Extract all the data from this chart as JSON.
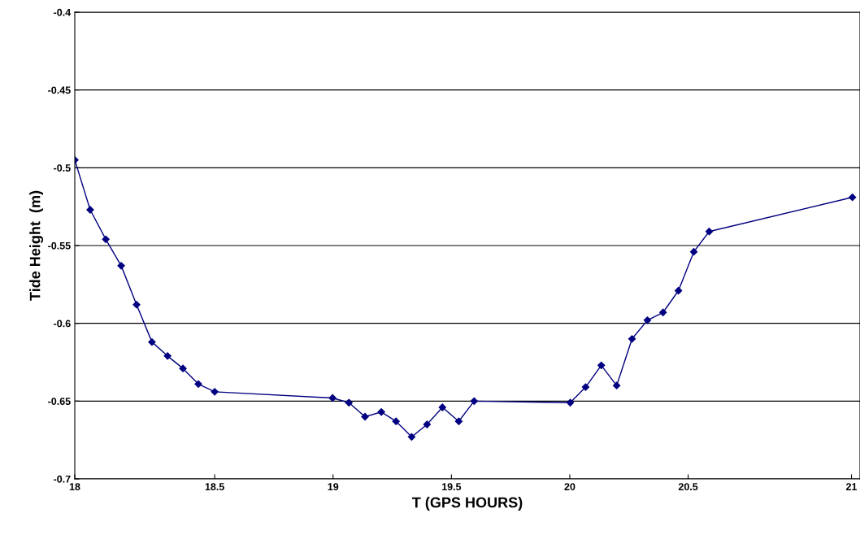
{
  "chart_data": {
    "type": "line",
    "xlabel": "T (GPS HOURS)",
    "ylabel": "Tide Height  (m)",
    "x": [
      17.909,
      17.974,
      18.04,
      18.105,
      18.17,
      18.235,
      18.301,
      18.366,
      18.431,
      18.5,
      18.998,
      19.067,
      19.135,
      19.204,
      19.266,
      19.332,
      19.397,
      19.462,
      19.531,
      19.596,
      20.002,
      20.067,
      20.133,
      20.198,
      20.263,
      20.328,
      20.394,
      20.459,
      20.524,
      20.589,
      21.194
    ],
    "series": [
      {
        "color": "#000080",
        "values": [
          -0.495,
          -0.527,
          -0.546,
          -0.563,
          -0.588,
          -0.612,
          -0.621,
          -0.629,
          -0.639,
          -0.644,
          -0.648,
          -0.651,
          -0.66,
          -0.657,
          -0.663,
          -0.673,
          -0.665,
          -0.654,
          -0.663,
          -0.65,
          -0.651,
          -0.641,
          -0.627,
          -0.64,
          -0.61,
          -0.598,
          -0.593,
          -0.579,
          -0.554,
          -0.541,
          -0.519
        ]
      }
    ],
    "xlim": [
      17.909,
      21.226
    ],
    "xticks": [
      {
        "value": 17.909,
        "label": "18"
      },
      18.5,
      19,
      19.5,
      20,
      20.5,
      {
        "value": 21.19,
        "label": "21"
      }
    ],
    "ylim": [
      -0.7,
      -0.4
    ],
    "yticks": [
      -0.7,
      -0.65,
      -0.6,
      -0.55,
      -0.5,
      -0.45,
      -0.4
    ],
    "grid": "y",
    "marker": "diamond",
    "line_style": "solid"
  }
}
